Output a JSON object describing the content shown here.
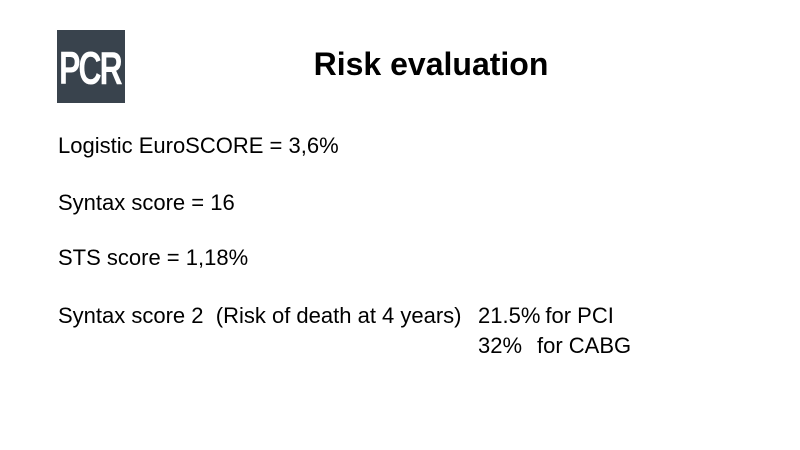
{
  "logo": {
    "text": "PCR",
    "background_color": "#39434D",
    "text_color": "#FFFFFF"
  },
  "title": "Risk evaluation",
  "lines": [
    {
      "text": "Logistic EuroSCORE = 3,6%"
    },
    {
      "text": "Syntax score = 16"
    },
    {
      "text": "STS score = 1,18%"
    },
    {
      "text": "Syntax score 2  (Risk of death at 4 years)"
    }
  ],
  "risk_rows": [
    {
      "value": "21.5%",
      "label": "for PCI"
    },
    {
      "value": "32%",
      "label": "for CABG"
    }
  ],
  "colors": {
    "background": "#FFFFFF",
    "text": "#000000"
  }
}
